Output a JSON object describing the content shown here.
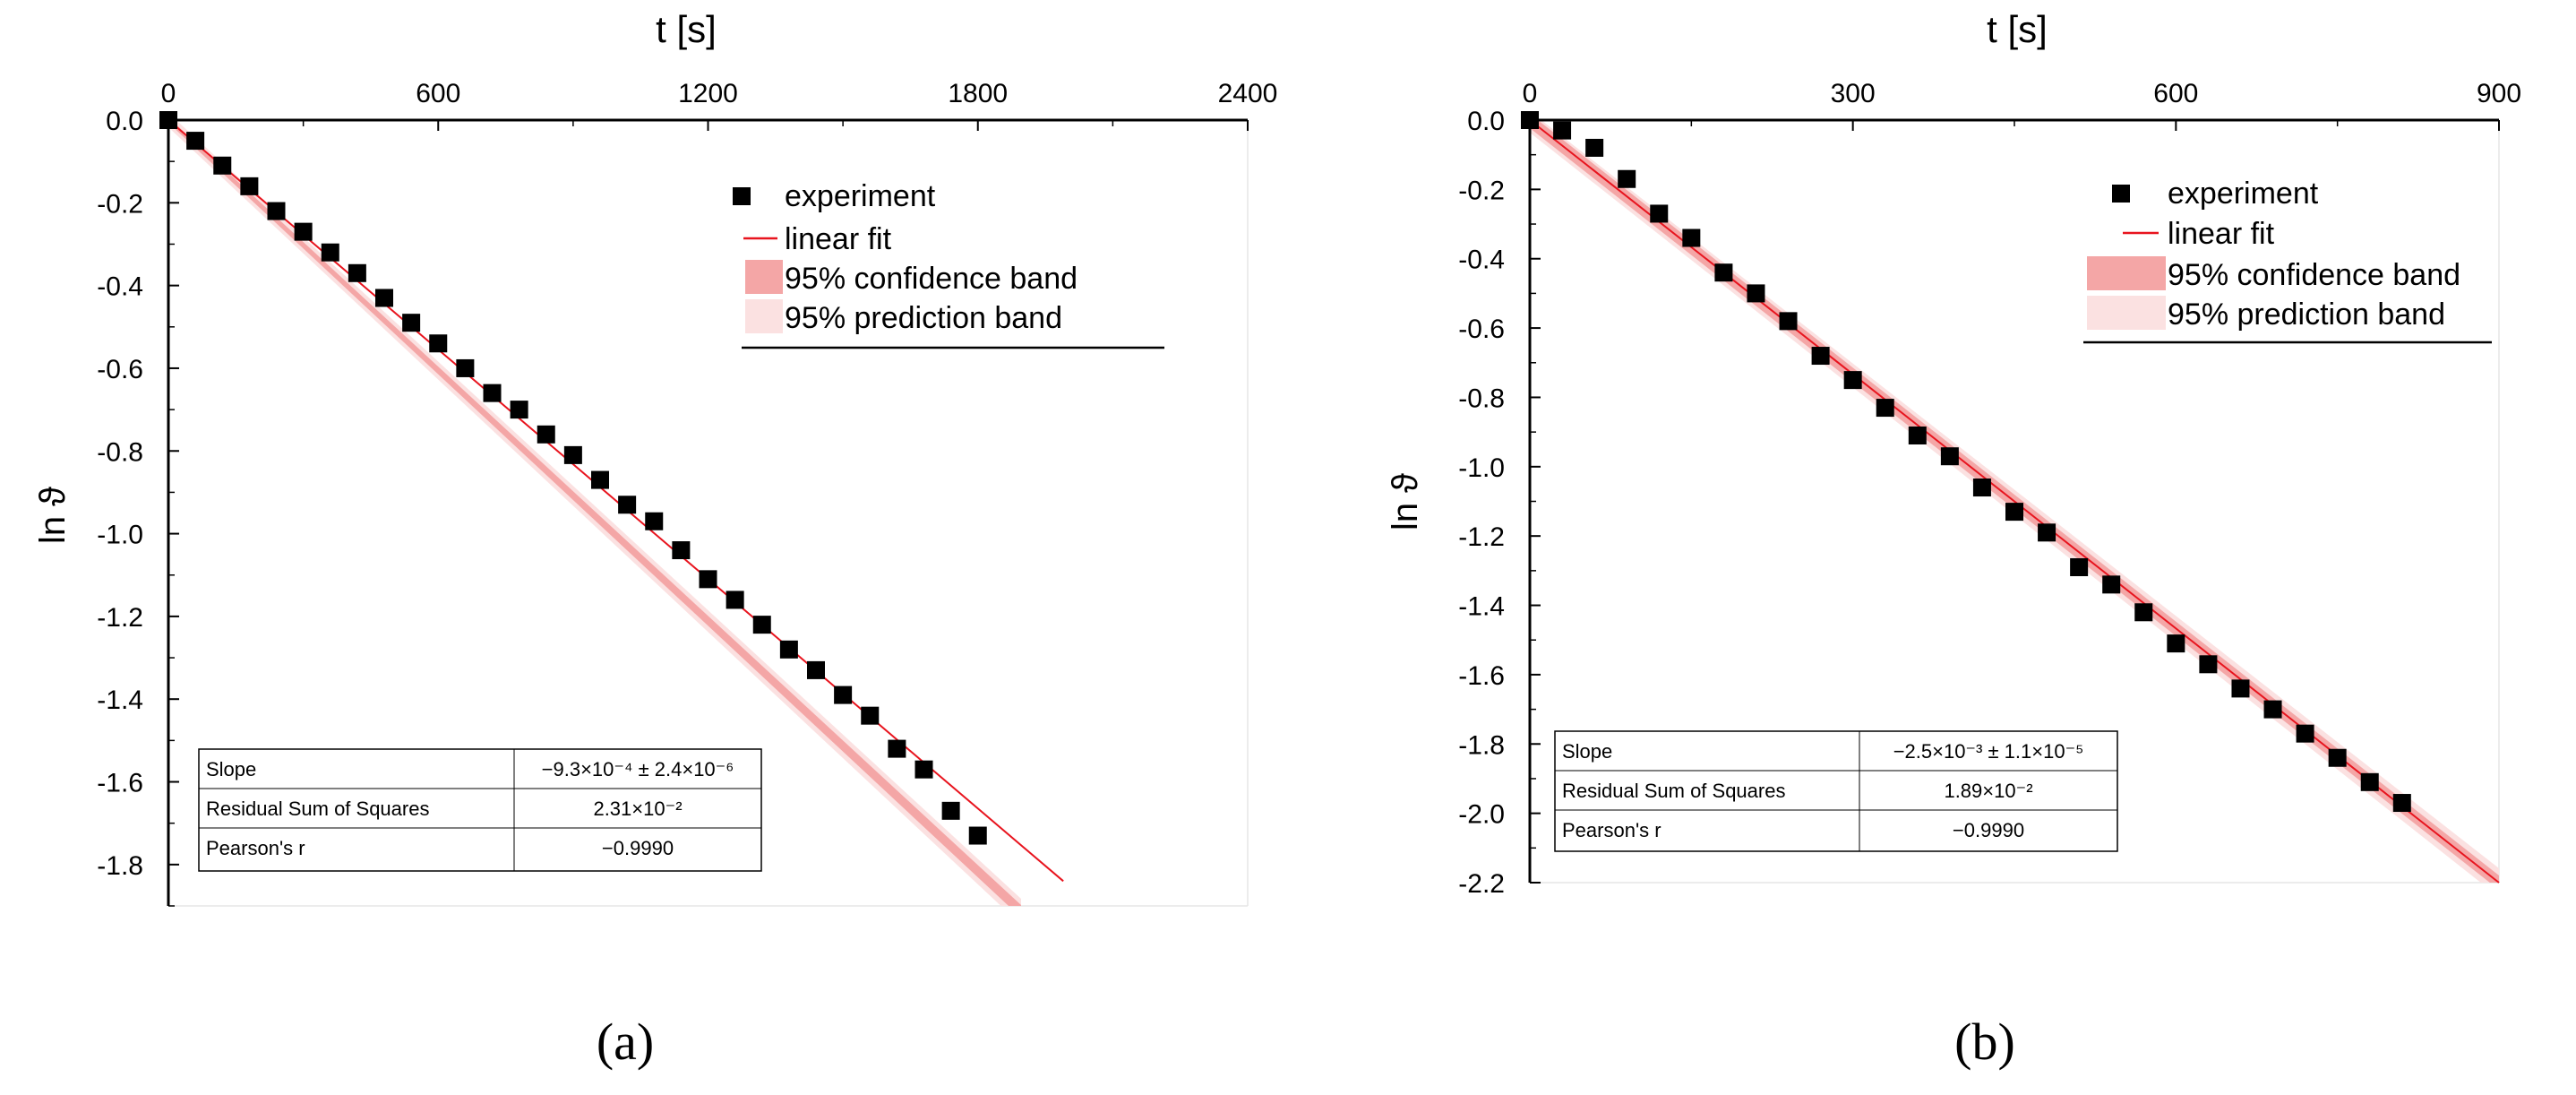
{
  "chart_data": [
    {
      "type": "scatter",
      "panel_label": "(a)",
      "xlabel": "t [s]",
      "ylabel": "ln ϑ",
      "xlim": [
        0,
        2400
      ],
      "ylim": [
        -1.9,
        0.0
      ],
      "x_ticks": [
        "0",
        "600",
        "1200",
        "1800",
        "2400"
      ],
      "y_ticks": [
        "0.0",
        "-0.2",
        "-0.4",
        "-0.6",
        "-0.8",
        "-1.0",
        "-1.2",
        "-1.4",
        "-1.6",
        "-1.8"
      ],
      "legend_position": "top-right",
      "series": [
        {
          "name": "experiment",
          "marker": "square",
          "color": "#000000",
          "x": [
            0,
            60,
            120,
            180,
            240,
            300,
            360,
            420,
            480,
            540,
            600,
            660,
            720,
            780,
            840,
            900,
            960,
            1020,
            1080,
            1140,
            1200,
            1260,
            1320,
            1380,
            1440,
            1500,
            1560,
            1620,
            1680,
            1740,
            1800
          ],
          "y": [
            0.0,
            -0.05,
            -0.11,
            -0.16,
            -0.22,
            -0.27,
            -0.32,
            -0.37,
            -0.43,
            -0.49,
            -0.54,
            -0.6,
            -0.66,
            -0.7,
            -0.76,
            -0.81,
            -0.87,
            -0.93,
            -0.97,
            -1.04,
            -1.11,
            -1.16,
            -1.22,
            -1.28,
            -1.33,
            -1.39,
            -1.44,
            -1.52,
            -1.57,
            -1.67,
            -1.73
          ]
        },
        {
          "name": "linear fit",
          "color": "#e8141e",
          "x": [
            0,
            1990
          ],
          "y": [
            0.0,
            -1.84
          ]
        },
        {
          "name": "95% confidence band",
          "color": "#f4a6a6"
        },
        {
          "name": "95% prediction band",
          "color": "#fbe1e1"
        }
      ],
      "stats_table": [
        {
          "label": "Slope",
          "value": "−9.3×10⁻⁴ ± 2.4×10⁻⁶"
        },
        {
          "label": "Residual Sum of Squares",
          "value": "2.31×10⁻²"
        },
        {
          "label": "Pearson's r",
          "value": "−0.9990"
        }
      ]
    },
    {
      "type": "scatter",
      "panel_label": "(b)",
      "xlabel": "t [s]",
      "ylabel": "ln ϑ",
      "xlim": [
        0,
        900
      ],
      "ylim": [
        -2.2,
        0.0
      ],
      "x_ticks": [
        "0",
        "300",
        "600",
        "900"
      ],
      "y_ticks": [
        "0.0",
        "-0.2",
        "-0.4",
        "-0.6",
        "-0.8",
        "-1.0",
        "-1.2",
        "-1.4",
        "-1.6",
        "-1.8",
        "-2.0",
        "-2.2"
      ],
      "legend_position": "top-right",
      "series": [
        {
          "name": "experiment",
          "marker": "square",
          "color": "#000000",
          "x": [
            0,
            30,
            60,
            90,
            120,
            150,
            180,
            210,
            240,
            270,
            300,
            330,
            360,
            390,
            420,
            450,
            480,
            510,
            540,
            570,
            600,
            630,
            660,
            690,
            720,
            750,
            780,
            810
          ],
          "y": [
            0.0,
            -0.03,
            -0.08,
            -0.17,
            -0.27,
            -0.34,
            -0.44,
            -0.5,
            -0.58,
            -0.68,
            -0.75,
            -0.83,
            -0.91,
            -0.97,
            -1.06,
            -1.13,
            -1.19,
            -1.29,
            -1.34,
            -1.42,
            -1.51,
            -1.57,
            -1.64,
            -1.7,
            -1.77,
            -1.84,
            -1.91,
            -1.97
          ]
        },
        {
          "name": "linear fit",
          "color": "#e8141e",
          "x": [
            0,
            900
          ],
          "y": [
            0.0,
            -2.2
          ]
        },
        {
          "name": "95% confidence band",
          "color": "#f4a6a6"
        },
        {
          "name": "95% prediction band",
          "color": "#fbe1e1"
        }
      ],
      "stats_table": [
        {
          "label": "Slope",
          "value": "−2.5×10⁻³ ± 1.1×10⁻⁵"
        },
        {
          "label": "Residual Sum of Squares",
          "value": "1.89×10⁻²"
        },
        {
          "label": "Pearson's r",
          "value": "−0.9990"
        }
      ]
    }
  ]
}
